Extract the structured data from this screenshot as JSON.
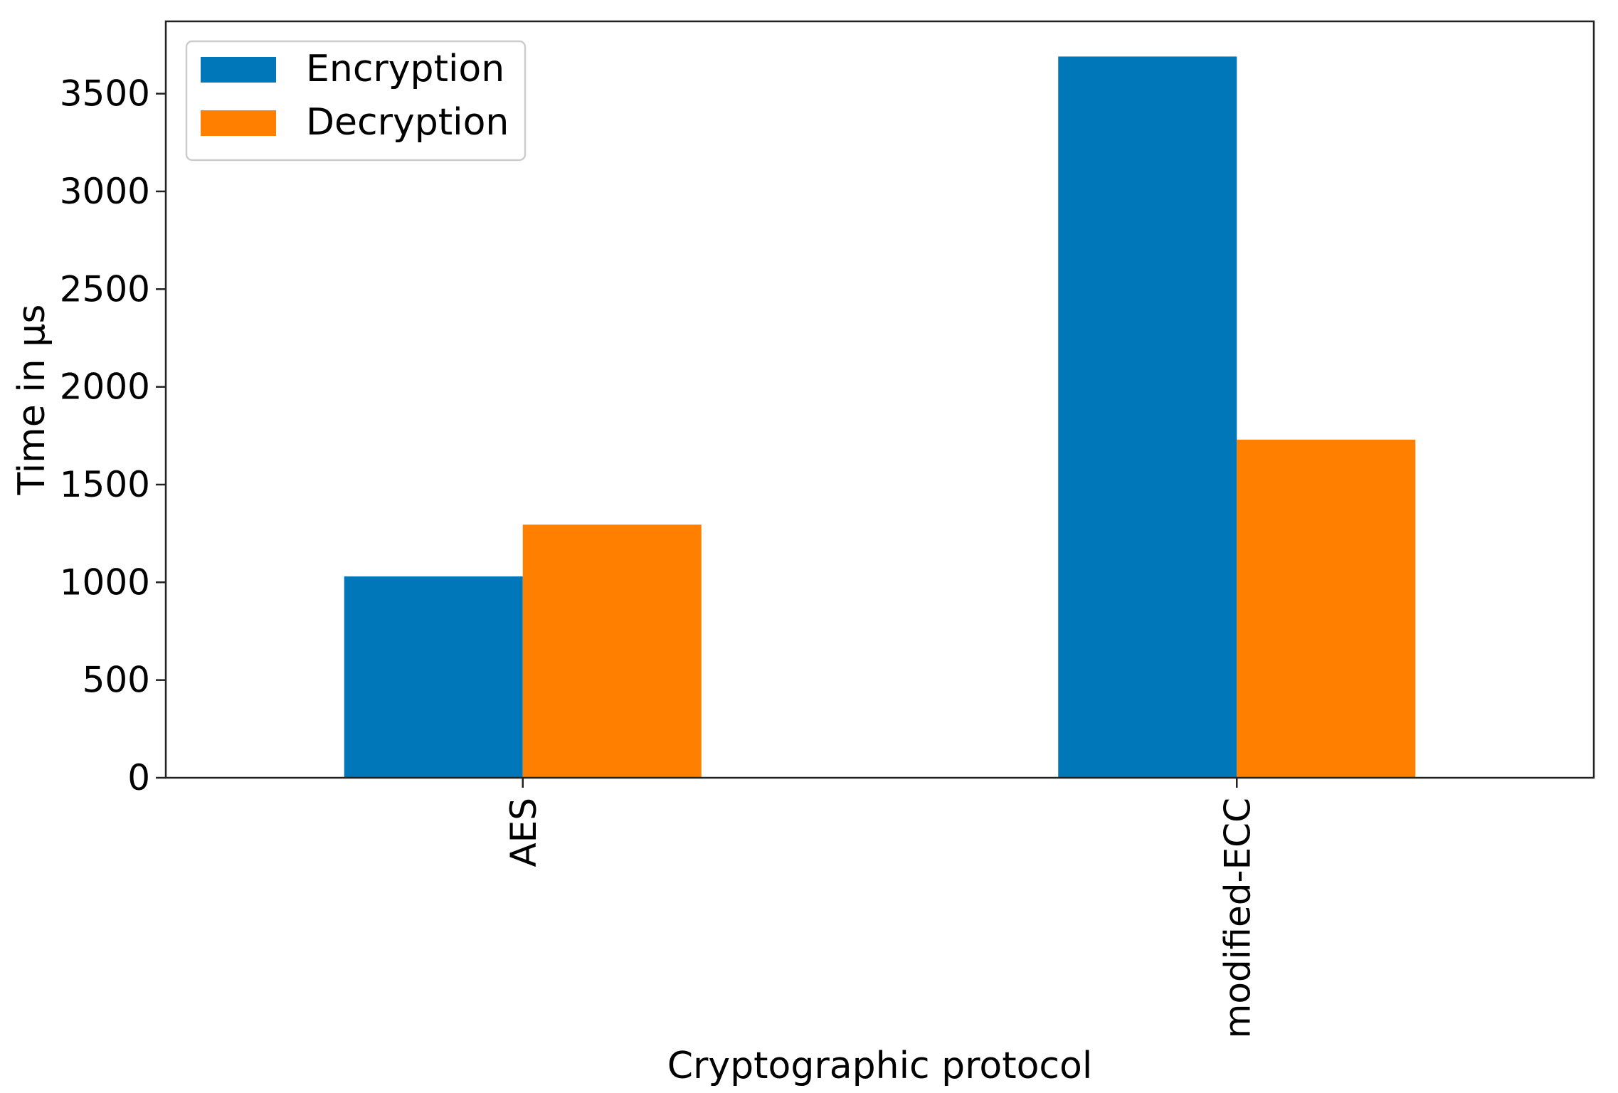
{
  "chart_data": {
    "type": "bar",
    "categories": [
      "AES",
      "modified-ECC"
    ],
    "series": [
      {
        "name": "Encryption",
        "values": [
          1030,
          3690
        ],
        "color": "#0077b8"
      },
      {
        "name": "Decryption",
        "values": [
          1295,
          1730
        ],
        "color": "#ff7f00"
      }
    ],
    "xlabel": "Cryptographic protocol",
    "ylabel": "Time in µs",
    "ylim": [
      0,
      3870
    ],
    "yticks": [
      0,
      500,
      1000,
      1500,
      2000,
      2500,
      3000,
      3500
    ],
    "grid": false,
    "legend": "top-left",
    "xtick_rotation": "vertical"
  }
}
